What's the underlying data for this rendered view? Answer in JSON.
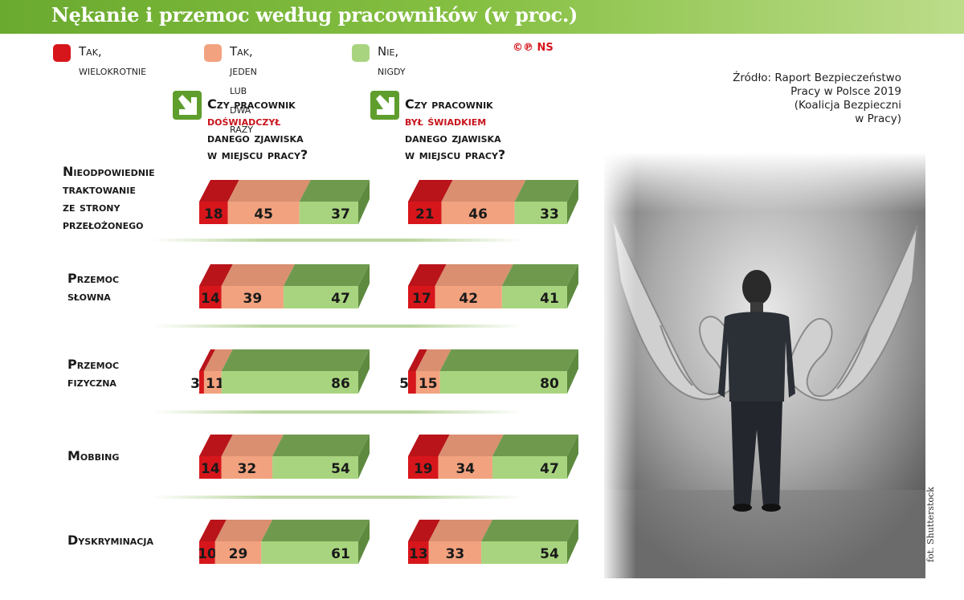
{
  "title": "Nękanie i przemoc według pracowników (w proc.)",
  "legend": [
    {
      "label": "Tak,\nwielokrotnie",
      "color": "#d7161b"
    },
    {
      "label": "Tak, jeden\nlub dwa razy",
      "color": "#f2a27f"
    },
    {
      "label": "Nie, nigdy",
      "color": "#a8d47f"
    }
  ],
  "copyright": "©℗ NS",
  "source": "Źródło: Raport Bezpieczeństwo\nPracy w Polsce 2019\n(Koalicja Bezpieczni\nw Pracy)",
  "questions": [
    {
      "line1": "Czy pracownik",
      "highlight": "doświadczył",
      "line3": "danego zjawiska",
      "line4": "w miejscu pracy?"
    },
    {
      "line1": "Czy pracownik",
      "highlight": "był świadkiem",
      "line3": "danego zjawiska",
      "line4": "w miejscu pracy?"
    }
  ],
  "photo_credit": "fot. Shutterstock",
  "chart_data": {
    "type": "bar",
    "orientation": "horizontal-stacked-100",
    "title": "Nękanie i przemoc według pracowników (w proc.)",
    "categories": [
      "Nieodpowiednie\ntraktowanie\nze strony\nprzełożonego",
      "Przemoc\nsłowna",
      "Przemoc\nfizyczna",
      "Mobbing",
      "Dyskryminacja"
    ],
    "segments": [
      "Tak, wielokrotnie",
      "Tak, jeden lub dwa razy",
      "Nie, nigdy"
    ],
    "colors": [
      "#d7161b",
      "#f2a27f",
      "#a8d47f"
    ],
    "groups": [
      {
        "name": "doświadczył",
        "values": [
          [
            18,
            45,
            37
          ],
          [
            14,
            39,
            47
          ],
          [
            3,
            11,
            86
          ],
          [
            14,
            32,
            54
          ],
          [
            10,
            29,
            61
          ]
        ]
      },
      {
        "name": "był świadkiem",
        "values": [
          [
            21,
            46,
            33
          ],
          [
            17,
            42,
            41
          ],
          [
            5,
            15,
            80
          ],
          [
            19,
            34,
            47
          ],
          [
            13,
            33,
            54
          ]
        ]
      }
    ],
    "xlim": [
      0,
      100
    ]
  }
}
